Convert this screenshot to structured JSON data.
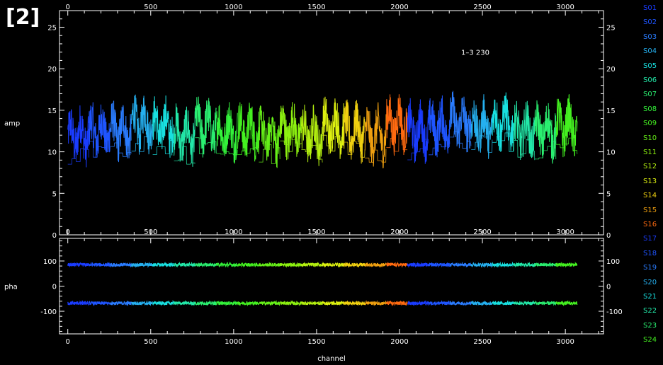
{
  "badge": "[2]",
  "chart_data": {
    "type": "line",
    "panels": [
      {
        "name": "amp",
        "ylabel": "amp",
        "ylim": [
          0,
          27
        ],
        "yticks": [
          0,
          5,
          10,
          15,
          20,
          25
        ],
        "annotation": {
          "text": "1–3 230",
          "x": 2585,
          "y": 22
        }
      },
      {
        "name": "pha",
        "ylabel": "pha",
        "ylim": [
          -190,
          190
        ],
        "yticks": [
          -100,
          0,
          100
        ]
      }
    ],
    "xlabel": "channel",
    "xlim": [
      -50,
      3230
    ],
    "xticks": [
      0,
      500,
      1000,
      1500,
      2000,
      2500,
      3000
    ],
    "grid": false,
    "legend": "right",
    "series": [
      {
        "name": "S01",
        "color": "#1a3cff",
        "x_range": [
          0,
          127
        ],
        "amp_mean": 12.0,
        "pha": [
          85,
          -68
        ]
      },
      {
        "name": "S02",
        "color": "#1f55ff",
        "x_range": [
          128,
          255
        ],
        "amp_mean": 12.5,
        "pha": [
          85,
          -68
        ]
      },
      {
        "name": "S03",
        "color": "#2a7cff",
        "x_range": [
          256,
          383
        ],
        "amp_mean": 12.5,
        "pha": [
          85,
          -68
        ]
      },
      {
        "name": "S04",
        "color": "#25b0f0",
        "x_range": [
          384,
          511
        ],
        "amp_mean": 13.5,
        "pha": [
          85,
          -68
        ]
      },
      {
        "name": "S05",
        "color": "#18e0e0",
        "x_range": [
          512,
          639
        ],
        "amp_mean": 13.0,
        "pha": [
          85,
          -68
        ]
      },
      {
        "name": "S06",
        "color": "#22e8a8",
        "x_range": [
          640,
          767
        ],
        "amp_mean": 12.0,
        "pha": [
          85,
          -68
        ]
      },
      {
        "name": "S07",
        "color": "#2aef70",
        "x_range": [
          768,
          895
        ],
        "amp_mean": 13.0,
        "pha": [
          85,
          -68
        ]
      },
      {
        "name": "S08",
        "color": "#33f23a",
        "x_range": [
          896,
          1023
        ],
        "amp_mean": 12.5,
        "pha": [
          85,
          -68
        ]
      },
      {
        "name": "S09",
        "color": "#44f020",
        "x_range": [
          1024,
          1151
        ],
        "amp_mean": 12.5,
        "pha": [
          85,
          -68
        ]
      },
      {
        "name": "S10",
        "color": "#66f018",
        "x_range": [
          1152,
          1279
        ],
        "amp_mean": 12.0,
        "pha": [
          85,
          -68
        ]
      },
      {
        "name": "S11",
        "color": "#8cf010",
        "x_range": [
          1280,
          1407
        ],
        "amp_mean": 12.5,
        "pha": [
          85,
          -68
        ]
      },
      {
        "name": "S12",
        "color": "#b4f010",
        "x_range": [
          1408,
          1535
        ],
        "amp_mean": 12.0,
        "pha": [
          85,
          -68
        ]
      },
      {
        "name": "S13",
        "color": "#dcf010",
        "x_range": [
          1536,
          1663
        ],
        "amp_mean": 13.0,
        "pha": [
          85,
          -68
        ]
      },
      {
        "name": "S14",
        "color": "#f0d010",
        "x_range": [
          1664,
          1791
        ],
        "amp_mean": 12.5,
        "pha": [
          85,
          -68
        ]
      },
      {
        "name": "S15",
        "color": "#f0a010",
        "x_range": [
          1792,
          1919
        ],
        "amp_mean": 12.0,
        "pha": [
          85,
          -68
        ]
      },
      {
        "name": "S16",
        "color": "#ff6a10",
        "x_range": [
          1920,
          2047
        ],
        "amp_mean": 13.5,
        "pha": [
          85,
          -68
        ]
      },
      {
        "name": "S17",
        "color": "#1a3cff",
        "x_range": [
          2048,
          2175
        ],
        "amp_mean": 12.5,
        "pha": [
          85,
          -68
        ]
      },
      {
        "name": "S18",
        "color": "#1f55ff",
        "x_range": [
          2176,
          2303
        ],
        "amp_mean": 13.0,
        "pha": [
          85,
          -68
        ]
      },
      {
        "name": "S19",
        "color": "#2a7cff",
        "x_range": [
          2304,
          2431
        ],
        "amp_mean": 13.5,
        "pha": [
          85,
          -68
        ]
      },
      {
        "name": "S20",
        "color": "#25b0f0",
        "x_range": [
          2432,
          2559
        ],
        "amp_mean": 13.0,
        "pha": [
          85,
          -68
        ]
      },
      {
        "name": "S21",
        "color": "#18e0e0",
        "x_range": [
          2560,
          2687
        ],
        "amp_mean": 13.5,
        "pha": [
          85,
          -68
        ]
      },
      {
        "name": "S22",
        "color": "#22e8a8",
        "x_range": [
          2688,
          2815
        ],
        "amp_mean": 12.5,
        "pha": [
          85,
          -68
        ]
      },
      {
        "name": "S23",
        "color": "#2aef70",
        "x_range": [
          2816,
          2943
        ],
        "amp_mean": 12.5,
        "pha": [
          85,
          -68
        ]
      },
      {
        "name": "S24",
        "color": "#44f020",
        "x_range": [
          2944,
          3071
        ],
        "amp_mean": 13.0,
        "pha": [
          85,
          -68
        ]
      }
    ]
  }
}
